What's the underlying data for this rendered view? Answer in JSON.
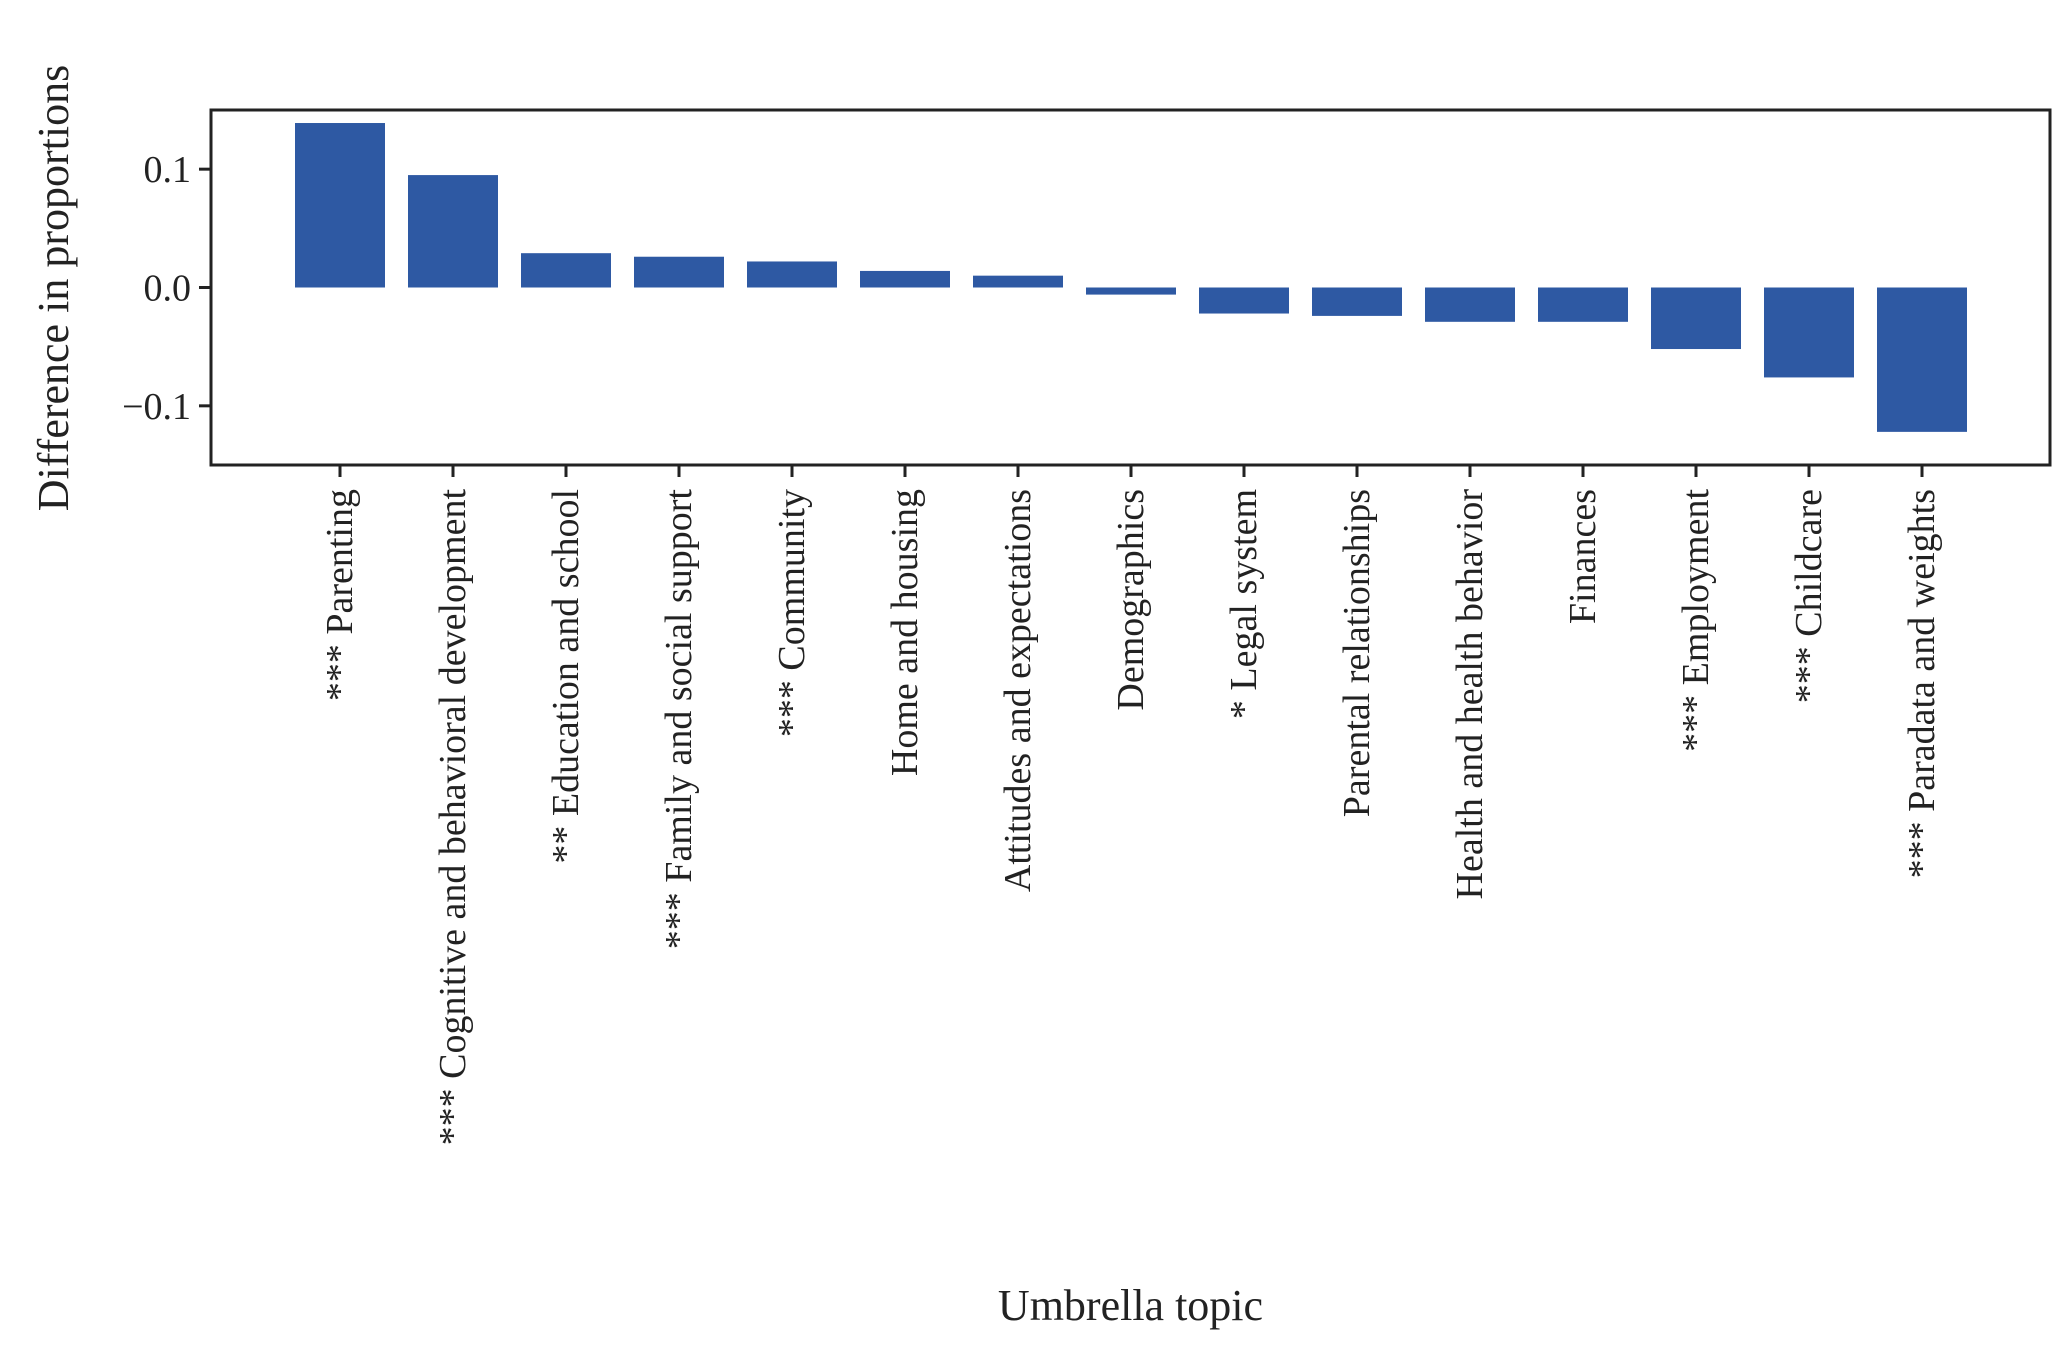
{
  "chart_data": {
    "type": "bar",
    "title": "",
    "xlabel": "Umbrella topic",
    "ylabel": "Difference in proportions",
    "ylim": [
      -0.15,
      0.15
    ],
    "yticks": [
      0.1,
      0.0,
      -0.1
    ],
    "ytick_labels": [
      "0.1",
      "0.0",
      "−0.1"
    ],
    "grid": false,
    "legend": "none",
    "bar_color": "#2e59a3",
    "categories": [
      "*** Parenting",
      "*** Cognitive and behavioral development",
      "** Education and school",
      "*** Family and social support",
      "*** Community",
      "Home and housing",
      "Attitudes and expectations",
      "Demographics",
      "* Legal system",
      "Parental relationships",
      "Health and health behavior",
      "Finances",
      "*** Employment",
      "*** Childcare",
      "*** Paradata and weights"
    ],
    "values": [
      0.139,
      0.095,
      0.029,
      0.026,
      0.022,
      0.014,
      0.01,
      -0.006,
      -0.022,
      -0.024,
      -0.029,
      -0.029,
      -0.052,
      -0.076,
      -0.122
    ]
  }
}
